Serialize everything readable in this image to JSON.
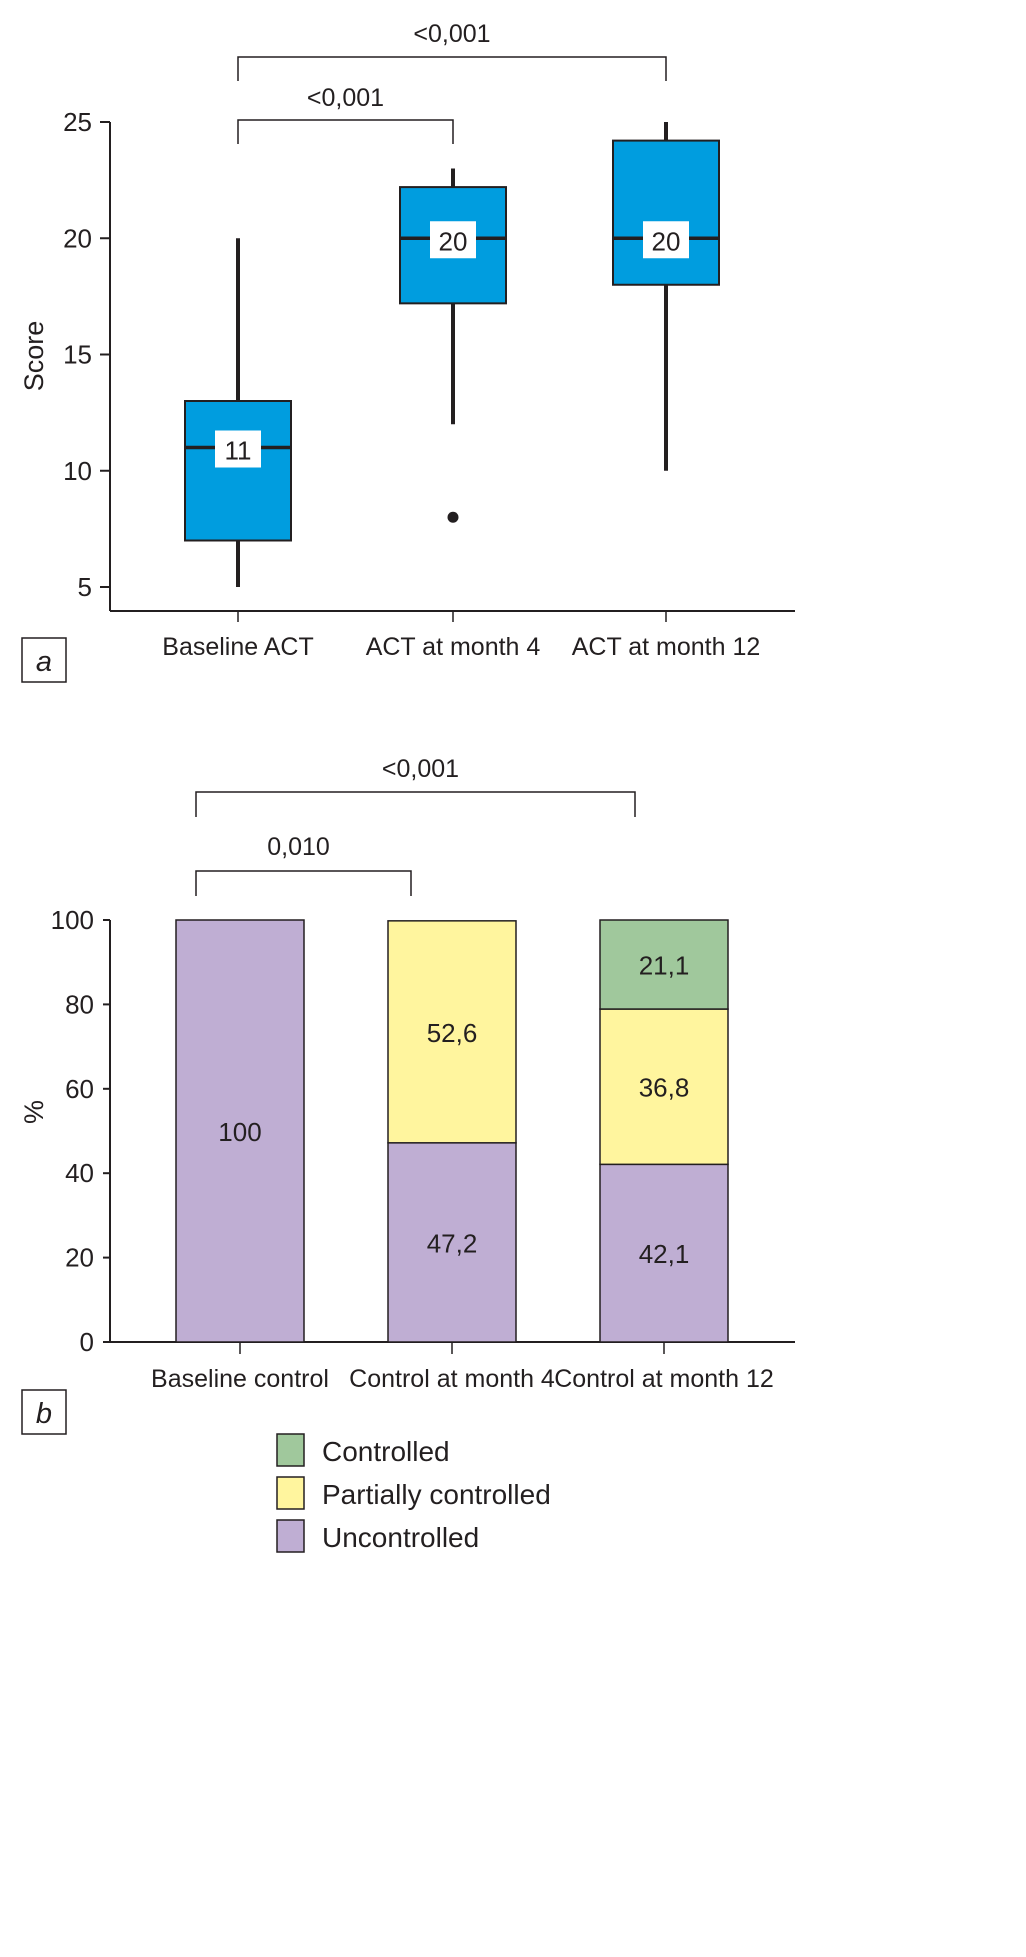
{
  "chart_data": [
    {
      "type": "boxplot",
      "panel_label": "a",
      "title": "",
      "xlabel": "",
      "ylabel": "Score",
      "ylim": [
        4,
        25
      ],
      "yticks": [
        5,
        10,
        15,
        20,
        25
      ],
      "grid": false,
      "box_color": "#009ddf",
      "categories": [
        "Baseline ACT",
        "ACT at month 4",
        "ACT at month 12"
      ],
      "boxes": [
        {
          "name": "Baseline ACT",
          "whisker_low": 5,
          "q1": 7,
          "median": 11,
          "q3": 13,
          "whisker_high": 20,
          "median_label": "11",
          "outliers": []
        },
        {
          "name": "ACT at month 4",
          "whisker_low": 12,
          "q1": 17.2,
          "median": 20,
          "q3": 22.2,
          "whisker_high": 23,
          "median_label": "20",
          "outliers": [
            8
          ]
        },
        {
          "name": "ACT at month 12",
          "whisker_low": 10,
          "q1": 18,
          "median": 20,
          "q3": 24.2,
          "whisker_high": 25,
          "median_label": "20",
          "outliers": []
        }
      ],
      "comparisons": [
        {
          "from": 0,
          "to": 1,
          "label": "<0,001",
          "level": 1
        },
        {
          "from": 0,
          "to": 2,
          "label": "<0,001",
          "level": 2
        }
      ]
    },
    {
      "type": "bar",
      "stacked": true,
      "panel_label": "b",
      "title": "",
      "xlabel": "",
      "ylabel": "%",
      "ylim": [
        0,
        100
      ],
      "yticks": [
        0,
        20,
        40,
        60,
        80,
        100
      ],
      "grid": false,
      "categories": [
        "Baseline control",
        "Control at month 4",
        "Control at month 12"
      ],
      "series": [
        {
          "name": "Uncontrolled",
          "color": "#bfaed3",
          "values": [
            100,
            47.2,
            42.1
          ],
          "labels": [
            "100",
            "47,2",
            "42,1"
          ]
        },
        {
          "name": "Partially controlled",
          "color": "#fff59e",
          "values": [
            0,
            52.6,
            36.8
          ],
          "labels": [
            "",
            "52,6",
            "36,8"
          ]
        },
        {
          "name": "Controlled",
          "color": "#a0c89c",
          "values": [
            0,
            0,
            21.1
          ],
          "labels": [
            "",
            "",
            "21,1"
          ]
        }
      ],
      "legend": {
        "placement": "bottom-center",
        "order": [
          "Controlled",
          "Partially controlled",
          "Uncontrolled"
        ]
      },
      "comparisons": [
        {
          "from": 0,
          "to": 1,
          "label": "0,010",
          "level": 1
        },
        {
          "from": 0,
          "to": 2,
          "label": "<0,001",
          "level": 2
        }
      ]
    }
  ]
}
